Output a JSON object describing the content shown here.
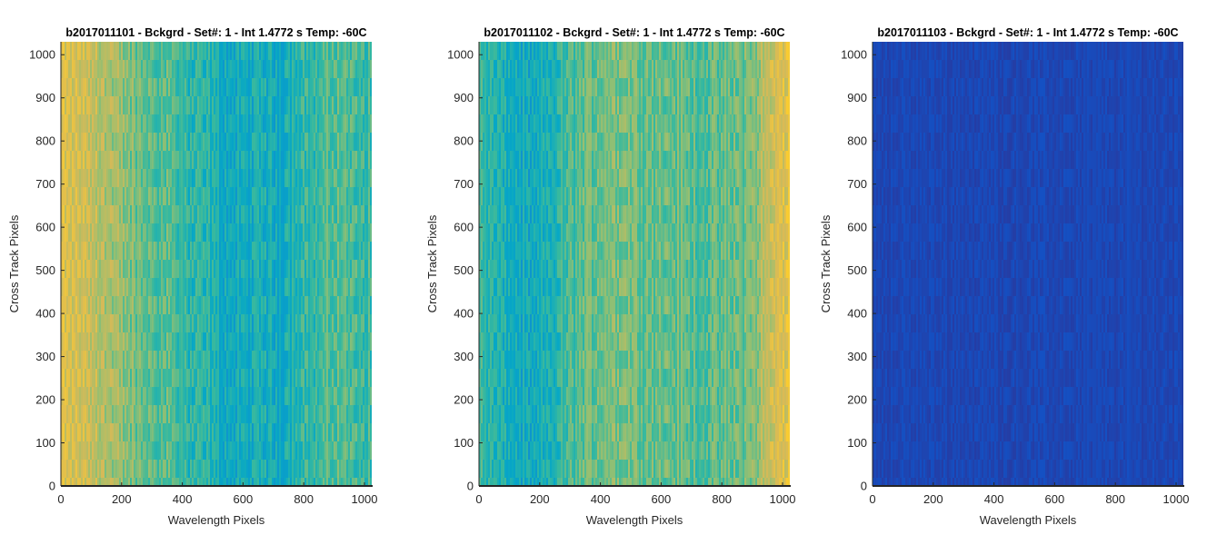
{
  "chart_data": [
    {
      "type": "heatmap",
      "title": "b2017011101 - Bckgrd - Set#: 1 - Int 1.4772 s Temp: -60C",
      "xlabel": "Wavelength Pixels",
      "ylabel": "Cross Track Pixels",
      "xlim": [
        0,
        1024
      ],
      "ylim": [
        0,
        1030
      ],
      "xticks": [
        0,
        200,
        400,
        600,
        800,
        1000
      ],
      "yticks": [
        0,
        100,
        200,
        300,
        400,
        500,
        600,
        700,
        800,
        900,
        1000
      ],
      "grid": false,
      "colormap": "parula",
      "column_profile": [
        0.76,
        0.74,
        0.7,
        0.64,
        0.58,
        0.54,
        0.54,
        0.46,
        0.46,
        0.4,
        0.4,
        0.42,
        0.4,
        0.48,
        0.48,
        0.54,
        0.52,
        0.5
      ],
      "noise": 0.09
    },
    {
      "type": "heatmap",
      "title": "b2017011102 - Bckgrd - Set#: 1 - Int 1.4772 s Temp: -60C",
      "xlabel": "Wavelength Pixels",
      "ylabel": "Cross Track Pixels",
      "xlim": [
        0,
        1024
      ],
      "ylim": [
        0,
        1030
      ],
      "xticks": [
        0,
        200,
        400,
        600,
        800,
        1000
      ],
      "yticks": [
        0,
        100,
        200,
        300,
        400,
        500,
        600,
        700,
        800,
        900,
        1000
      ],
      "grid": false,
      "colormap": "parula",
      "column_profile": [
        0.5,
        0.44,
        0.4,
        0.38,
        0.44,
        0.52,
        0.56,
        0.6,
        0.6,
        0.58,
        0.56,
        0.56,
        0.54,
        0.54,
        0.56,
        0.6,
        0.72,
        0.8
      ],
      "noise": 0.09
    },
    {
      "type": "heatmap",
      "title": "b2017011103 - Bckgrd - Set#: 1 - Int 1.4772 s Temp: -60C",
      "xlabel": "Wavelength Pixels",
      "ylabel": "Cross Track Pixels",
      "xlim": [
        0,
        1024
      ],
      "ylim": [
        0,
        1030
      ],
      "xticks": [
        0,
        200,
        400,
        600,
        800,
        1000
      ],
      "yticks": [
        0,
        100,
        200,
        300,
        400,
        500,
        600,
        700,
        800,
        900,
        1000
      ],
      "grid": false,
      "colormap": "parula",
      "column_profile": [
        0.06,
        0.06,
        0.06,
        0.06,
        0.06,
        0.06,
        0.06,
        0.06,
        0.06,
        0.06,
        0.06,
        0.06,
        0.06,
        0.06,
        0.06,
        0.06,
        0.06,
        0.06
      ],
      "noise": 0.02
    }
  ]
}
